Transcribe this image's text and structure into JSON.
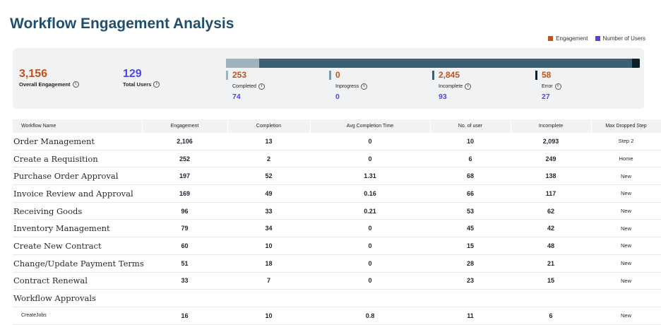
{
  "title": "Workflow Engagement Analysis",
  "legend": [
    {
      "label": "Engagement",
      "color": "#c0521e"
    },
    {
      "label": "Number of Users",
      "color": "#4f46e5"
    }
  ],
  "summary": {
    "overall_engagement": {
      "value": "3,156",
      "label": "Overall Engagement",
      "color": "#c0521e"
    },
    "total_users": {
      "value": "129",
      "label": "Total Users",
      "color": "#4f46e5"
    }
  },
  "progress": {
    "segments": [
      {
        "name": "Completed",
        "fraction": 0.0802,
        "color": "#9fb3bd"
      },
      {
        "name": "Inprogress",
        "fraction": 0.0,
        "color": "#9fb3bd"
      },
      {
        "name": "Incomplete",
        "fraction": 0.9014,
        "color": "#3c5f73"
      },
      {
        "name": "Error",
        "fraction": 0.0184,
        "color": "#0c1f2c"
      }
    ]
  },
  "stats": [
    {
      "value": "253",
      "label": "Completed",
      "users": "74",
      "marker": "#9fb3bd"
    },
    {
      "value": "0",
      "label": "Inprogress",
      "users": "0",
      "marker": "#7d9aa8"
    },
    {
      "value": "2,845",
      "label": "Incomplete",
      "users": "93",
      "marker": "#3c5f73"
    },
    {
      "value": "58",
      "label": "Error",
      "users": "27",
      "marker": "#0c1f2c"
    }
  ],
  "table": {
    "headers": [
      "Workflow Name",
      "Engagement",
      "Completion",
      "Avg Completion Time",
      "No. of user",
      "Incomplete",
      "Max Dropped Step"
    ],
    "rows": [
      {
        "name": "Order Management",
        "engagement": "2,106",
        "completion": "13",
        "avg_time": "0",
        "users": "10",
        "incomplete": "2,093",
        "max_step": "Step 2"
      },
      {
        "name": "Create a Requisition",
        "engagement": "252",
        "completion": "2",
        "avg_time": "0",
        "users": "6",
        "incomplete": "249",
        "max_step": "Home"
      },
      {
        "name": "Purchase Order Approval",
        "engagement": "197",
        "completion": "52",
        "avg_time": "1.31",
        "users": "68",
        "incomplete": "138",
        "max_step": "New"
      },
      {
        "name": "Invoice Review and Approval",
        "engagement": "169",
        "completion": "49",
        "avg_time": "0.16",
        "users": "66",
        "incomplete": "117",
        "max_step": "New"
      },
      {
        "name": "Receiving Goods",
        "engagement": "96",
        "completion": "33",
        "avg_time": "0.21",
        "users": "53",
        "incomplete": "62",
        "max_step": "New"
      },
      {
        "name": "Inventory Management",
        "engagement": "79",
        "completion": "34",
        "avg_time": "0",
        "users": "45",
        "incomplete": "42",
        "max_step": "New"
      },
      {
        "name": "Create New Contract",
        "engagement": "60",
        "completion": "10",
        "avg_time": "0",
        "users": "15",
        "incomplete": "48",
        "max_step": "New"
      },
      {
        "name": "Change/Update Payment Terms",
        "engagement": "51",
        "completion": "18",
        "avg_time": "0",
        "users": "28",
        "incomplete": "21",
        "max_step": "New"
      },
      {
        "name": "Contract Renewal",
        "engagement": "33",
        "completion": "7",
        "avg_time": "0",
        "users": "23",
        "incomplete": "15",
        "max_step": "New"
      },
      {
        "name": "Workflow Approvals",
        "engagement": "",
        "completion": "",
        "avg_time": "",
        "users": "",
        "incomplete": "",
        "max_step": ""
      },
      {
        "name": "CreateJobs",
        "engagement": "16",
        "completion": "10",
        "avg_time": "0.8",
        "users": "11",
        "incomplete": "6",
        "max_step": "New"
      }
    ]
  }
}
